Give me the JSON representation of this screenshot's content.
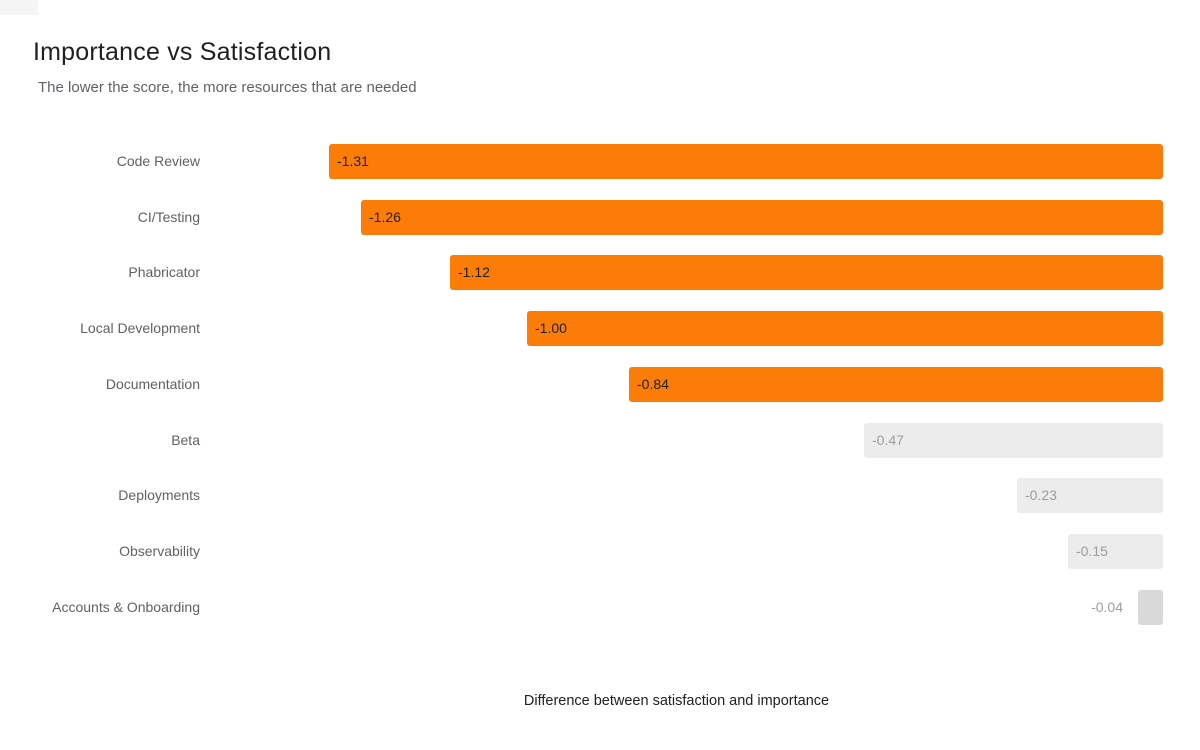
{
  "header": {
    "title": "Importance vs Satisfaction",
    "subtitle": "The lower the score, the more resources that are needed"
  },
  "chart_data": {
    "type": "bar",
    "orientation": "horizontal",
    "title": "Importance vs Satisfaction",
    "subtitle": "The lower the score, the more resources that are needed",
    "xlabel": "Difference between satisfaction and importance",
    "ylabel": "",
    "grid": false,
    "legend": false,
    "axis_ticks_visible": false,
    "value_anchor": 0,
    "xlim": [
      -1.53,
      0
    ],
    "categories": [
      "Code Review",
      "CI/Testing",
      "Phabricator",
      "Local Development",
      "Documentation",
      "Beta",
      "Deployments",
      "Observability",
      "Accounts & Onboarding"
    ],
    "values": [
      -1.31,
      -1.26,
      -1.12,
      -1.0,
      -0.84,
      -0.47,
      -0.23,
      -0.15,
      -0.04
    ],
    "bars": [
      {
        "label": "Code Review",
        "value": -1.31,
        "display": "-1.31",
        "tone": "orange",
        "value_position": "inside"
      },
      {
        "label": "CI/Testing",
        "value": -1.26,
        "display": "-1.26",
        "tone": "orange",
        "value_position": "inside"
      },
      {
        "label": "Phabricator",
        "value": -1.12,
        "display": "-1.12",
        "tone": "orange",
        "value_position": "inside"
      },
      {
        "label": "Local Development",
        "value": -1.0,
        "display": "-1.00",
        "tone": "orange",
        "value_position": "inside"
      },
      {
        "label": "Documentation",
        "value": -0.84,
        "display": "-0.84",
        "tone": "orange",
        "value_position": "inside"
      },
      {
        "label": "Beta",
        "value": -0.47,
        "display": "-0.47",
        "tone": "gray",
        "value_position": "inside"
      },
      {
        "label": "Deployments",
        "value": -0.23,
        "display": "-0.23",
        "tone": "gray",
        "value_position": "inside"
      },
      {
        "label": "Observability",
        "value": -0.15,
        "display": "-0.15",
        "tone": "gray",
        "value_position": "inside"
      },
      {
        "label": "Accounts & Onboarding",
        "value": -0.04,
        "display": "-0.04",
        "tone": "gray-dark",
        "value_position": "outside"
      }
    ]
  },
  "colors": {
    "background": "#ffffff",
    "bar_orange": "#FB7D08",
    "bar_gray": "#ECECEC",
    "bar_gray_dark": "#D9D9D9",
    "value_text_dark": "#212121",
    "value_text_gray": "#9E9E9E",
    "category_label": "#616161",
    "title_text": "#1F1F1F",
    "subtitle_text": "#5F6368",
    "axis_label_text": "#202124"
  }
}
